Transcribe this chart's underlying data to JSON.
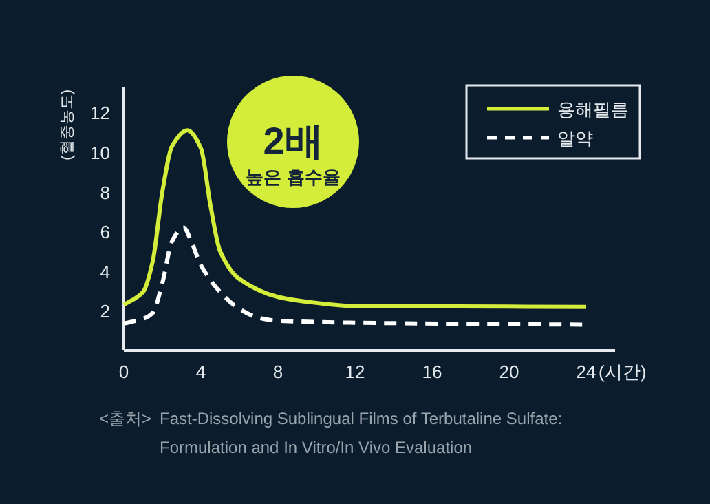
{
  "chart_data": {
    "type": "line",
    "xlabel": "(시간)",
    "ylabel": "(혈중농도)",
    "xlim": [
      0,
      25.5
    ],
    "ylim": [
      0,
      13.3
    ],
    "xticks": [
      0,
      4,
      8,
      12,
      16,
      20,
      24
    ],
    "yticks": [
      2,
      4,
      6,
      8,
      10,
      12
    ],
    "legend": "top right",
    "series": [
      {
        "name": "용해필름",
        "color": "#d4ec3a",
        "line_style": "solid",
        "x": [
          0,
          1,
          1.5,
          2,
          2.5,
          3.3,
          4,
          4.5,
          5,
          6,
          8,
          10,
          12,
          24
        ],
        "values": [
          2.3,
          2.95,
          4.5,
          8.0,
          10.3,
          11.1,
          10.2,
          7.3,
          5.0,
          3.6,
          2.7,
          2.4,
          2.24,
          2.2
        ]
      },
      {
        "name": "알약",
        "color": "#ffffff",
        "line_style": "dashed",
        "x": [
          0,
          1,
          1.5,
          2,
          2.5,
          3.1,
          3.5,
          4,
          5,
          6,
          7,
          8,
          12,
          24
        ],
        "values": [
          1.36,
          1.6,
          1.9,
          3.4,
          5.5,
          6.2,
          5.5,
          4.3,
          2.95,
          2.1,
          1.65,
          1.5,
          1.4,
          1.3
        ]
      }
    ],
    "annotations": [
      "2배",
      "높은 흡수율",
      "<출처>",
      "Fast-Dissolving Sublingual Films of Terbutaline Sulfate: Formulation and In Vitro/In Vivo Evaluation"
    ]
  }
}
